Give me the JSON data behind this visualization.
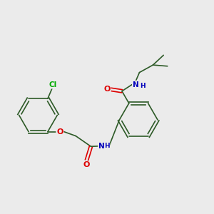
{
  "bg_color": "#ebebeb",
  "bond_color": "#2d5a27",
  "atom_colors": {
    "O": "#dd0000",
    "N": "#0000bb",
    "Cl": "#00aa00",
    "C": "#2d5a27"
  },
  "bond_width": 1.2,
  "font_size": 7.0
}
